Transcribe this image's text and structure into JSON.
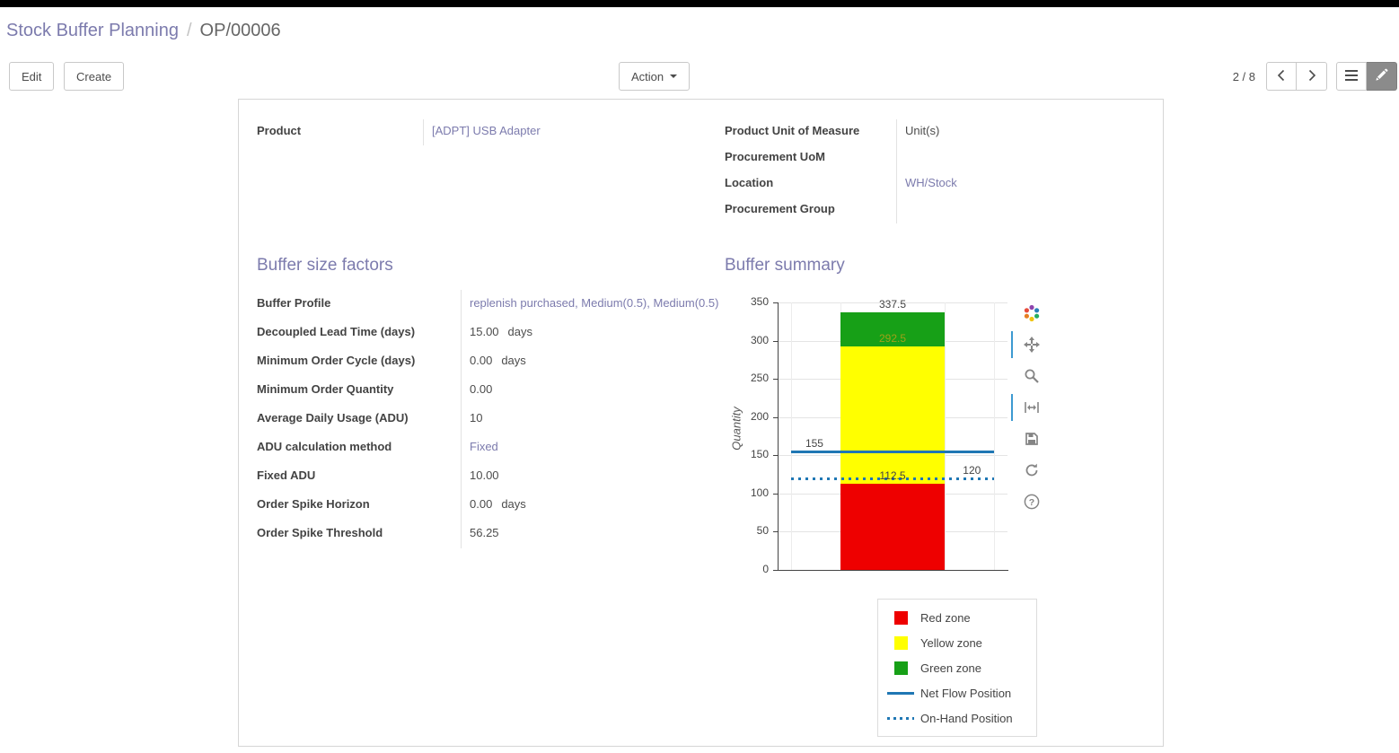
{
  "breadcrumb": {
    "parent": "Stock Buffer Planning",
    "separator": "/",
    "current": "OP/00006"
  },
  "control_panel": {
    "edit_label": "Edit",
    "create_label": "Create",
    "action_label": "Action",
    "pager_value": "2 / 8",
    "view_switcher": [
      "list",
      "form"
    ],
    "active_view": "form"
  },
  "form": {
    "product": {
      "label": "Product",
      "value": "[ADPT] USB Adapter"
    },
    "info_rows": [
      {
        "label": "Product Unit of Measure",
        "value": "Unit(s)",
        "is_link": false
      },
      {
        "label": "Procurement UoM",
        "value": "",
        "is_link": false
      },
      {
        "label": "Location",
        "value": "WH/Stock",
        "is_link": true
      },
      {
        "label": "Procurement Group",
        "value": "",
        "is_link": false
      }
    ],
    "factors": {
      "title": "Buffer size factors",
      "rows": [
        {
          "label": "Buffer Profile",
          "value": "replenish purchased, Medium(0.5), Medium(0.5)",
          "is_link": true
        },
        {
          "label": "Decoupled Lead Time (days)",
          "value": "15.00",
          "suffix": "days"
        },
        {
          "label": "Minimum Order Cycle (days)",
          "value": "0.00",
          "suffix": "days"
        },
        {
          "label": "Minimum Order Quantity",
          "value": "0.00"
        },
        {
          "label": "Average Daily Usage (ADU)",
          "value": "10"
        },
        {
          "label": "ADU calculation method",
          "value": "Fixed",
          "is_link": true
        },
        {
          "label": "Fixed ADU",
          "value": "10.00"
        },
        {
          "label": "Order Spike Horizon",
          "value": "0.00",
          "suffix": "days"
        },
        {
          "label": "Order Spike Threshold",
          "value": "56.25"
        }
      ]
    },
    "summary": {
      "title": "Buffer summary"
    }
  },
  "chart_data": {
    "type": "bar",
    "title": "Buffer summary",
    "ylabel": "Quantity",
    "ylim": [
      0,
      350
    ],
    "yticks": [
      0,
      50,
      100,
      150,
      200,
      250,
      300,
      350
    ],
    "grid": true,
    "zones": [
      {
        "name": "Red zone",
        "from": 0,
        "to": 112.5,
        "color": "#ee0000"
      },
      {
        "name": "Yellow zone",
        "from": 112.5,
        "to": 292.5,
        "color": "#ffff00"
      },
      {
        "name": "Green zone",
        "from": 292.5,
        "to": 337.5,
        "color": "#17a017"
      }
    ],
    "lines": [
      {
        "name": "Net Flow Position",
        "value": 155,
        "style": "solid",
        "color": "#1f77b4",
        "label": "155"
      },
      {
        "name": "On-Hand Position",
        "value": 120,
        "style": "dotted",
        "color": "#1f77b4",
        "label": "120"
      }
    ],
    "annotations": [
      {
        "text": "337.5",
        "value": 337.5,
        "align": "bar-center",
        "color": "#444444"
      },
      {
        "text": "292.5",
        "value": 292.5,
        "align": "bar-center",
        "color": "#a0a018"
      },
      {
        "text": "155",
        "value": 155,
        "align": "left",
        "color": "#444444"
      },
      {
        "text": "112.5",
        "value": 112.5,
        "align": "bar-center",
        "color": "#444444"
      },
      {
        "text": "120",
        "value": 120,
        "align": "right",
        "color": "#444444"
      }
    ],
    "legend_position": "bottom-right",
    "legend": [
      {
        "label": "Red zone",
        "swatch": "square",
        "color": "#ee0000"
      },
      {
        "label": "Yellow zone",
        "swatch": "square",
        "color": "#ffff00"
      },
      {
        "label": "Green zone",
        "swatch": "square",
        "color": "#17a017"
      },
      {
        "label": "Net Flow Position",
        "swatch": "line",
        "color": "#1f77b4"
      },
      {
        "label": "On-Hand Position",
        "swatch": "dotted-line",
        "color": "#1f77b4"
      }
    ],
    "modebar": [
      "plotly-logo",
      "pan",
      "zoom",
      "autoscale",
      "save",
      "reset",
      "help"
    ]
  },
  "colors": {
    "accent": "#7c7bad"
  }
}
